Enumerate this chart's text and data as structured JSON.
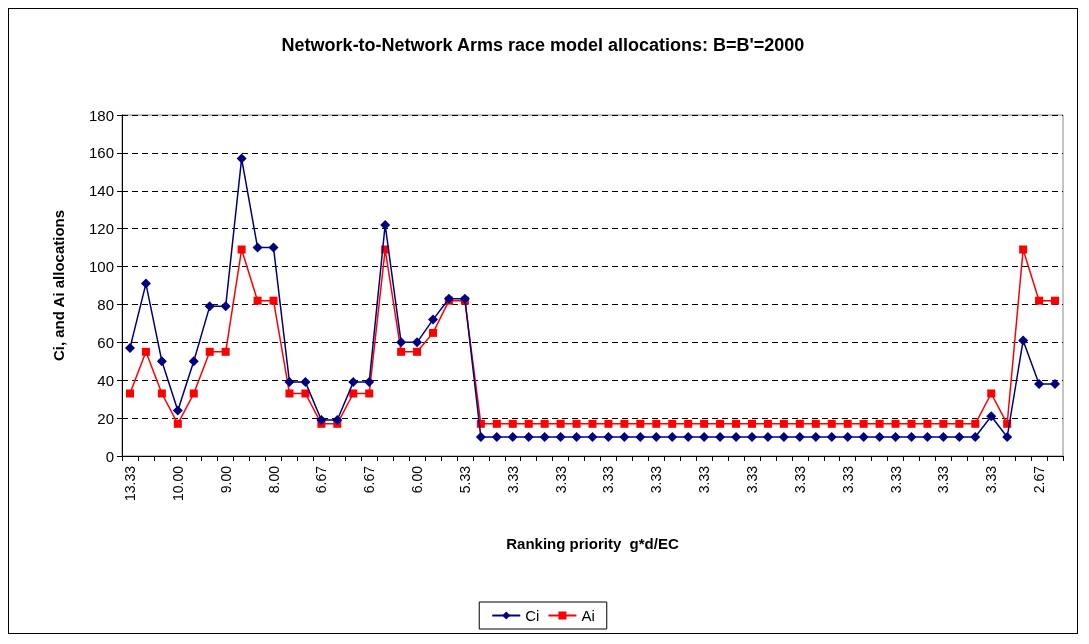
{
  "chart_data": {
    "type": "line",
    "title": "Network-to-Network Arms race model allocations: B=B'=2000",
    "xlabel": "Ranking priority  g*d/EC",
    "ylabel": "Ci, and Ai allocations",
    "categories": [
      "13.33",
      null,
      null,
      "10.00",
      null,
      null,
      "9.00",
      null,
      null,
      "8.00",
      null,
      null,
      "6.67",
      null,
      null,
      "6.67",
      null,
      null,
      "6.00",
      null,
      null,
      "5.33",
      null,
      null,
      "3.33",
      null,
      null,
      "3.33",
      null,
      null,
      "3.33",
      null,
      null,
      "3.33",
      null,
      null,
      "3.33",
      null,
      null,
      "3.33",
      null,
      null,
      "3.33",
      null,
      null,
      "3.33",
      null,
      null,
      "3.33",
      null,
      null,
      "3.33",
      null,
      null,
      "3.33",
      null,
      null,
      "2.67",
      null
    ],
    "series": [
      {
        "name": "Ci",
        "color": "#000080",
        "marker": "diamond",
        "values": [
          57,
          91,
          50,
          24,
          50,
          79,
          79,
          157,
          110,
          110,
          39,
          39,
          19,
          19,
          39,
          39,
          122,
          60,
          60,
          72,
          83,
          83,
          10,
          10,
          10,
          10,
          10,
          10,
          10,
          10,
          10,
          10,
          10,
          10,
          10,
          10,
          10,
          10,
          10,
          10,
          10,
          10,
          10,
          10,
          10,
          10,
          10,
          10,
          10,
          10,
          10,
          10,
          10,
          10,
          21,
          10,
          61,
          38,
          38
        ]
      },
      {
        "name": "Ai",
        "color": "#ff0000",
        "marker": "square",
        "values": [
          33,
          55,
          33,
          17,
          33,
          55,
          55,
          109,
          82,
          82,
          33,
          33,
          17,
          17,
          33,
          33,
          109,
          55,
          55,
          65,
          82,
          82,
          17,
          17,
          17,
          17,
          17,
          17,
          17,
          17,
          17,
          17,
          17,
          17,
          17,
          17,
          17,
          17,
          17,
          17,
          17,
          17,
          17,
          17,
          17,
          17,
          17,
          17,
          17,
          17,
          17,
          17,
          17,
          17,
          33,
          17,
          109,
          82,
          82
        ]
      }
    ],
    "ylim": [
      0,
      180
    ],
    "yticks": [
      0,
      20,
      40,
      60,
      80,
      100,
      120,
      140,
      160,
      180
    ],
    "grid": "y",
    "legend": "bottom",
    "line_style": "solid"
  }
}
